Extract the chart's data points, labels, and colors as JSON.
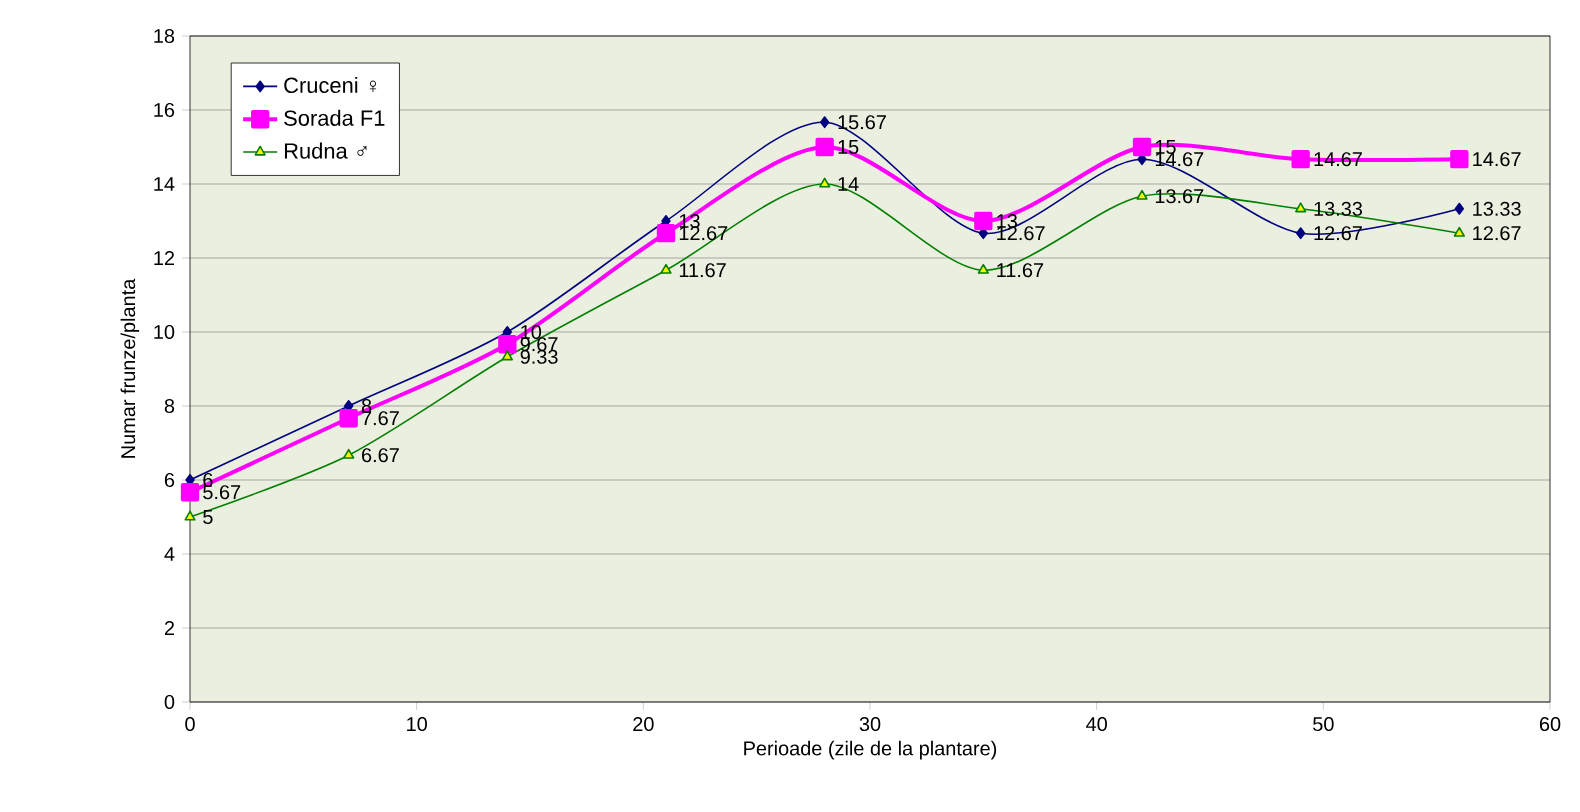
{
  "chart_data": {
    "type": "line",
    "xlabel": "Perioade (zile de la plantare)",
    "ylabel": "Numar frunze/planta",
    "x": [
      0,
      7,
      14,
      21,
      28,
      35,
      42,
      49,
      56
    ],
    "series": [
      {
        "name": "Cruceni ♀",
        "color": "#000080",
        "marker": "diamond",
        "values": [
          6,
          8,
          10,
          13,
          15.67,
          12.67,
          14.67,
          12.67,
          13.33
        ]
      },
      {
        "name": "Sorada F1",
        "color": "#ff00ff",
        "marker": "square",
        "values": [
          5.67,
          7.67,
          9.67,
          12.67,
          15,
          13,
          15,
          14.67,
          14.67
        ]
      },
      {
        "name": "Rudna ♂",
        "color": "#008000",
        "marker": "triangle",
        "values": [
          5,
          6.67,
          9.33,
          11.67,
          14,
          11.67,
          13.67,
          13.33,
          12.67
        ]
      }
    ],
    "xlim": [
      0,
      60
    ],
    "xticks": [
      0,
      10,
      20,
      30,
      40,
      50,
      60
    ],
    "ylim": [
      0,
      18
    ],
    "yticks": [
      0,
      2,
      4,
      6,
      8,
      10,
      12,
      14,
      16,
      18
    ],
    "grid": "y",
    "legend": "top left",
    "data_labels": true
  }
}
